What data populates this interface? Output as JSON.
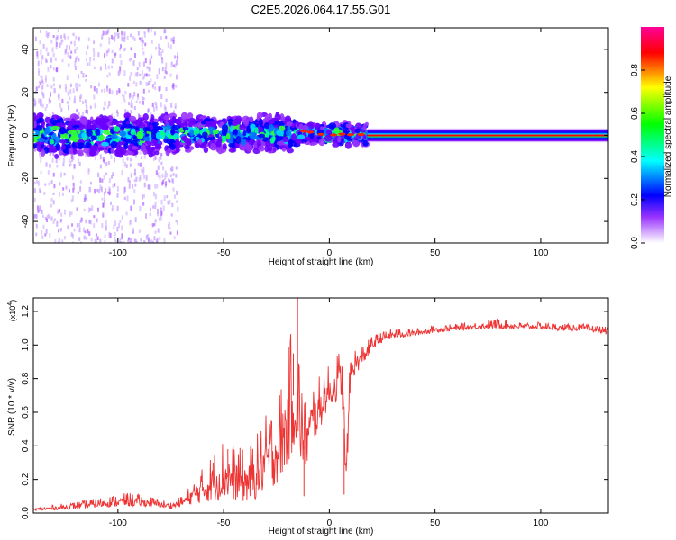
{
  "title": "C2E5.2026.064.17.55.G01",
  "chart_data": [
    {
      "type": "heatmap",
      "title": "C2E5.2026.064.17.55.G01",
      "xlabel": "Height of straight line (km)",
      "ylabel": "Frequency (Hz)",
      "xlim": [
        -140,
        132
      ],
      "ylim": [
        -50,
        50
      ],
      "xticks": [
        -100,
        -50,
        0,
        50,
        100
      ],
      "xtick_labels": [
        "-100",
        "-50",
        "0",
        "50",
        "100"
      ],
      "yticks": [
        -40,
        -20,
        0,
        20,
        40
      ],
      "ytick_labels": [
        "-40",
        "-20",
        "0",
        "20",
        "40"
      ],
      "colorbar": {
        "label": "Normalized spectral amplitude",
        "range": [
          0,
          1
        ],
        "ticks": [
          "0.0",
          "0.2",
          "0.4",
          "0.6",
          "0.8"
        ],
        "colors": [
          "#ffffff",
          "#9900ff",
          "#0000ff",
          "#00ffff",
          "#00ff00",
          "#ffff00",
          "#ff0000",
          "#ff00aa"
        ]
      },
      "features": [
        {
          "region_km": [
            -140,
            -72
          ],
          "description_values": {
            "frequency_spread_hz": [
              -50,
              50
            ],
            "core_band_hz": [
              -8,
              8
            ],
            "amplitude": [
              0.1,
              0.5
            ]
          }
        },
        {
          "region_km": [
            -72,
            -15
          ],
          "description_values": {
            "core_band_hz": [
              -6,
              8
            ],
            "amplitude": [
              0.3,
              0.55
            ]
          }
        },
        {
          "region_km": [
            -15,
            18
          ],
          "description_values": {
            "core_band_hz": [
              -3,
              4
            ],
            "amplitude": [
              0.5,
              0.9
            ]
          }
        },
        {
          "region_km": [
            18,
            132
          ],
          "description_values": {
            "core_band_hz": [
              -2,
              2
            ],
            "peak_frequency_hz": 0,
            "amplitude": 0.95
          }
        }
      ]
    },
    {
      "type": "line",
      "xlabel": "Height of straight line (km)",
      "ylabel": "SNR (10 * v/v)",
      "y_multiplier": "(x10^4)",
      "y_multiplier_base": "(x10",
      "y_multiplier_exp": "4",
      "y_multiplier_close": ")",
      "xlim": [
        -140,
        132
      ],
      "ylim": [
        0,
        1.28
      ],
      "xticks": [
        -100,
        -50,
        0,
        50,
        100
      ],
      "xtick_labels": [
        "-100",
        "-50",
        "0",
        "50",
        "100"
      ],
      "yticks": [
        0,
        0.2,
        0.4,
        0.6,
        0.8,
        1.0,
        1.2
      ],
      "ytick_labels": [
        "0.0",
        "0.2",
        "0.4",
        "0.6",
        "0.8",
        "1.0",
        "1.2"
      ],
      "series": [
        {
          "name": "SNR",
          "color": "#ee3333",
          "x": [
            -140,
            -120,
            -105,
            -95,
            -85,
            -75,
            -70,
            -65,
            -60,
            -55,
            -50,
            -45,
            -40,
            -35,
            -30,
            -25,
            -20,
            -17,
            -15,
            -14,
            -12,
            -10,
            -8,
            -5,
            -2,
            0,
            2,
            4,
            6,
            8,
            10,
            12,
            15,
            18,
            20,
            25,
            30,
            40,
            50,
            60,
            70,
            80,
            90,
            100,
            110,
            120,
            132
          ],
          "y": [
            0.02,
            0.04,
            0.06,
            0.07,
            0.06,
            0.04,
            0.06,
            0.1,
            0.14,
            0.18,
            0.22,
            0.2,
            0.18,
            0.22,
            0.3,
            0.36,
            0.5,
            0.7,
            0.6,
            0.55,
            0.4,
            0.45,
            0.55,
            0.6,
            0.7,
            0.72,
            0.74,
            0.78,
            0.8,
            0.2,
            0.85,
            0.88,
            0.92,
            0.96,
            1.0,
            1.04,
            1.06,
            1.07,
            1.09,
            1.1,
            1.11,
            1.12,
            1.11,
            1.11,
            1.1,
            1.1,
            1.08
          ],
          "noise_amplitude": [
            0.01,
            0.02,
            0.03,
            0.04,
            0.03,
            0.02,
            0.03,
            0.06,
            0.1,
            0.14,
            0.18,
            0.16,
            0.15,
            0.18,
            0.22,
            0.24,
            0.32,
            0.4,
            0.36,
            0.3,
            0.22,
            0.2,
            0.18,
            0.16,
            0.14,
            0.12,
            0.12,
            0.14,
            0.16,
            0.1,
            0.12,
            0.08,
            0.06,
            0.05,
            0.04,
            0.03,
            0.03,
            0.02,
            0.02,
            0.02,
            0.02,
            0.03,
            0.02,
            0.02,
            0.02,
            0.02,
            0.02
          ],
          "spikes": [
            [
              -15,
              1.28
            ],
            [
              -17,
              0.95
            ],
            [
              7,
              0.11
            ],
            [
              -12,
              0.1
            ],
            [
              -55,
              0.3
            ],
            [
              -48,
              0.38
            ]
          ]
        }
      ]
    }
  ]
}
